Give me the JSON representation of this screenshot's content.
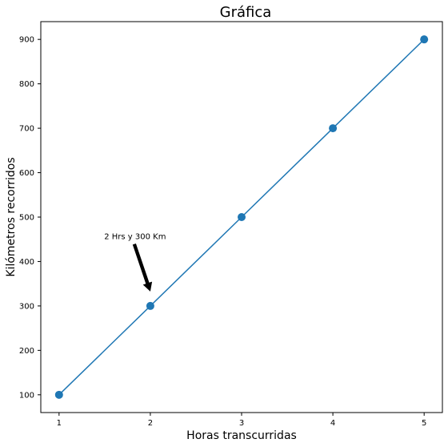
{
  "chart_data": {
    "type": "line",
    "title": "Gráfica",
    "xlabel": "Horas transcurridas",
    "ylabel": "Kilómetros recorridos",
    "x": [
      1,
      2,
      3,
      4,
      5
    ],
    "series": [
      {
        "values": [
          100,
          300,
          500,
          700,
          900
        ]
      }
    ],
    "xlim": [
      0.8,
      5.2
    ],
    "ylim": [
      60,
      940
    ],
    "xticks": [
      "1",
      "2",
      "3",
      "4",
      "5"
    ],
    "yticks": [
      "100",
      "200",
      "300",
      "400",
      "500",
      "600",
      "700",
      "800",
      "900"
    ],
    "grid": false,
    "line_color": "#1f77b4",
    "annotation": {
      "text": "2 Hrs y 300 Km",
      "point": [
        2,
        300
      ],
      "text_position": [
        1.5,
        450
      ],
      "arrow_color": "#000000"
    }
  }
}
